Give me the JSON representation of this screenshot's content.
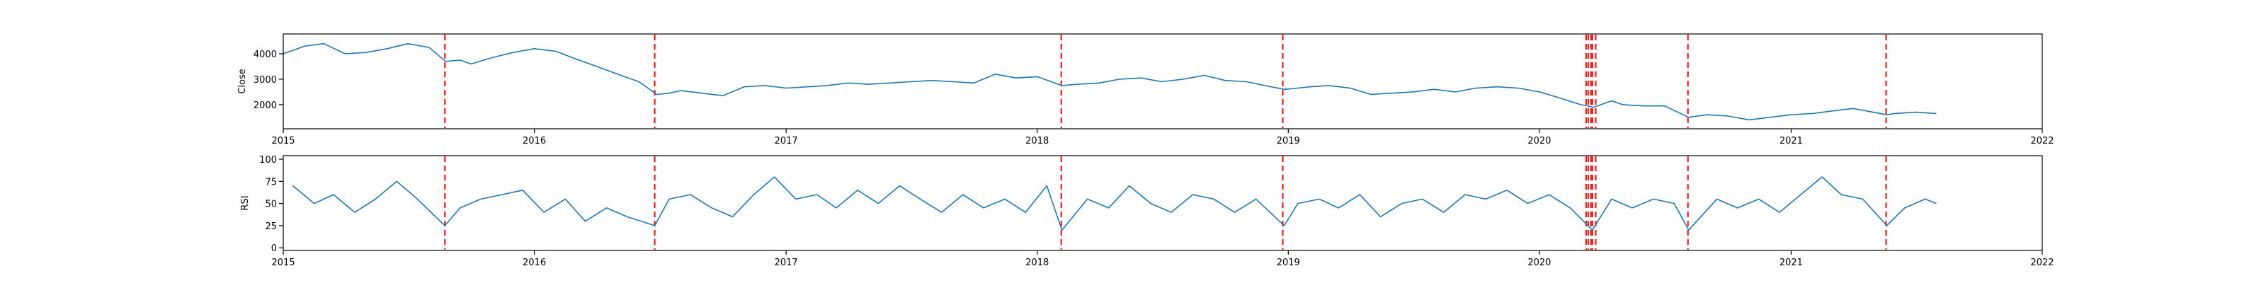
{
  "chart_data": [
    {
      "type": "line",
      "title": "",
      "xlabel": "",
      "ylabel": "Close",
      "xlim": [
        "2015-01-01",
        "2022-01-01"
      ],
      "ylim": [
        1050,
        4780
      ],
      "x_ticks": [
        "2015",
        "2016",
        "2017",
        "2018",
        "2019",
        "2020",
        "2021",
        "2022"
      ],
      "y_ticks": [
        2000,
        3000,
        4000
      ],
      "grid": false,
      "line_color": "#1f77b4",
      "event_line_color": "#ff0000",
      "event_dates": [
        "2015-08-24",
        "2016-06-24",
        "2018-02-05",
        "2018-12-24",
        "2020-03-09",
        "2020-03-12",
        "2020-03-16",
        "2020-03-18",
        "2020-03-23",
        "2020-08-04",
        "2021-05-19"
      ],
      "series": [
        {
          "name": "",
          "x": [
            "2015-01-01",
            "2015-02-01",
            "2015-03-01",
            "2015-04-01",
            "2015-05-01",
            "2015-06-01",
            "2015-07-01",
            "2015-08-01",
            "2015-08-25",
            "2015-09-15",
            "2015-10-01",
            "2015-11-01",
            "2015-12-01",
            "2016-01-01",
            "2016-02-01",
            "2016-03-01",
            "2016-04-01",
            "2016-05-01",
            "2016-06-01",
            "2016-06-27",
            "2016-07-15",
            "2016-08-01",
            "2016-09-01",
            "2016-10-01",
            "2016-11-01",
            "2016-12-01",
            "2017-01-01",
            "2017-02-01",
            "2017-03-01",
            "2017-04-01",
            "2017-05-01",
            "2017-06-01",
            "2017-07-01",
            "2017-08-01",
            "2017-09-01",
            "2017-10-01",
            "2017-11-01",
            "2017-12-01",
            "2018-01-01",
            "2018-02-06",
            "2018-03-01",
            "2018-04-01",
            "2018-05-01",
            "2018-06-01",
            "2018-07-01",
            "2018-08-01",
            "2018-09-01",
            "2018-10-01",
            "2018-11-01",
            "2018-12-26",
            "2019-01-15",
            "2019-02-01",
            "2019-03-01",
            "2019-04-01",
            "2019-05-01",
            "2019-06-01",
            "2019-07-01",
            "2019-08-01",
            "2019-09-01",
            "2019-10-01",
            "2019-11-01",
            "2019-12-01",
            "2020-01-01",
            "2020-02-01",
            "2020-03-01",
            "2020-03-20",
            "2020-04-15",
            "2020-05-01",
            "2020-06-01",
            "2020-07-01",
            "2020-08-05",
            "2020-09-01",
            "2020-10-01",
            "2020-11-01",
            "2020-12-01",
            "2021-01-01",
            "2021-02-01",
            "2021-03-01",
            "2021-04-01",
            "2021-05-20",
            "2021-06-01",
            "2021-07-01",
            "2021-07-31"
          ],
          "values": [
            4000,
            4300,
            4400,
            4000,
            4050,
            4200,
            4400,
            4250,
            3700,
            3750,
            3600,
            3850,
            4050,
            4200,
            4100,
            3800,
            3500,
            3200,
            2900,
            2400,
            2450,
            2550,
            2450,
            2350,
            2700,
            2750,
            2650,
            2700,
            2750,
            2850,
            2800,
            2850,
            2900,
            2950,
            2900,
            2850,
            3200,
            3050,
            3100,
            2750,
            2800,
            2850,
            3000,
            3050,
            2900,
            3000,
            3150,
            2950,
            2900,
            2600,
            2650,
            2700,
            2750,
            2650,
            2400,
            2450,
            2500,
            2600,
            2500,
            2650,
            2700,
            2650,
            2500,
            2250,
            2000,
            1900,
            2150,
            2000,
            1950,
            1950,
            1500,
            1600,
            1550,
            1400,
            1500,
            1600,
            1650,
            1750,
            1850,
            1600,
            1650,
            1700,
            1650
          ]
        }
      ]
    },
    {
      "type": "line",
      "title": "",
      "xlabel": "",
      "ylabel": "RSI",
      "xlim": [
        "2015-01-01",
        "2022-01-01"
      ],
      "ylim": [
        -3,
        104
      ],
      "x_ticks": [
        "2015",
        "2016",
        "2017",
        "2018",
        "2019",
        "2020",
        "2021",
        "2022"
      ],
      "y_ticks": [
        0,
        25,
        50,
        75,
        100
      ],
      "grid": false,
      "line_color": "#1f77b4",
      "event_line_color": "#ff0000",
      "event_dates": [
        "2015-08-24",
        "2016-06-24",
        "2018-02-05",
        "2018-12-24",
        "2020-03-09",
        "2020-03-12",
        "2020-03-16",
        "2020-03-18",
        "2020-03-23",
        "2020-08-04",
        "2021-05-19"
      ],
      "series": [
        {
          "name": "",
          "x": [
            "2015-01-15",
            "2015-02-15",
            "2015-03-15",
            "2015-04-15",
            "2015-05-15",
            "2015-06-15",
            "2015-07-15",
            "2015-08-24",
            "2015-09-15",
            "2015-10-15",
            "2015-11-15",
            "2015-12-15",
            "2016-01-15",
            "2016-02-15",
            "2016-03-15",
            "2016-04-15",
            "2016-05-15",
            "2016-06-24",
            "2016-07-15",
            "2016-08-15",
            "2016-09-15",
            "2016-10-15",
            "2016-11-15",
            "2016-12-15",
            "2017-01-15",
            "2017-02-15",
            "2017-03-15",
            "2017-04-15",
            "2017-05-15",
            "2017-06-15",
            "2017-07-15",
            "2017-08-15",
            "2017-09-15",
            "2017-10-15",
            "2017-11-15",
            "2017-12-15",
            "2018-01-15",
            "2018-02-06",
            "2018-03-15",
            "2018-04-15",
            "2018-05-15",
            "2018-06-15",
            "2018-07-15",
            "2018-08-15",
            "2018-09-15",
            "2018-10-15",
            "2018-11-15",
            "2018-12-26",
            "2019-01-15",
            "2019-02-15",
            "2019-03-15",
            "2019-04-15",
            "2019-05-15",
            "2019-06-15",
            "2019-07-15",
            "2019-08-15",
            "2019-09-15",
            "2019-10-15",
            "2019-11-15",
            "2019-12-15",
            "2020-01-15",
            "2020-02-15",
            "2020-03-18",
            "2020-04-15",
            "2020-05-15",
            "2020-06-15",
            "2020-07-15",
            "2020-08-05",
            "2020-09-15",
            "2020-10-15",
            "2020-11-15",
            "2020-12-15",
            "2021-01-15",
            "2021-02-15",
            "2021-03-15",
            "2021-04-15",
            "2021-05-20",
            "2021-06-15",
            "2021-07-15",
            "2021-07-31"
          ],
          "values": [
            70,
            50,
            60,
            40,
            55,
            75,
            55,
            25,
            45,
            55,
            60,
            65,
            40,
            55,
            30,
            45,
            35,
            25,
            55,
            60,
            45,
            35,
            60,
            80,
            55,
            60,
            45,
            65,
            50,
            70,
            55,
            40,
            60,
            45,
            55,
            40,
            70,
            20,
            55,
            45,
            70,
            50,
            40,
            60,
            55,
            40,
            55,
            25,
            50,
            55,
            45,
            60,
            35,
            50,
            55,
            40,
            60,
            55,
            65,
            50,
            60,
            45,
            20,
            55,
            45,
            55,
            50,
            20,
            55,
            45,
            55,
            40,
            60,
            80,
            60,
            55,
            25,
            45,
            55,
            50
          ]
        }
      ]
    }
  ]
}
